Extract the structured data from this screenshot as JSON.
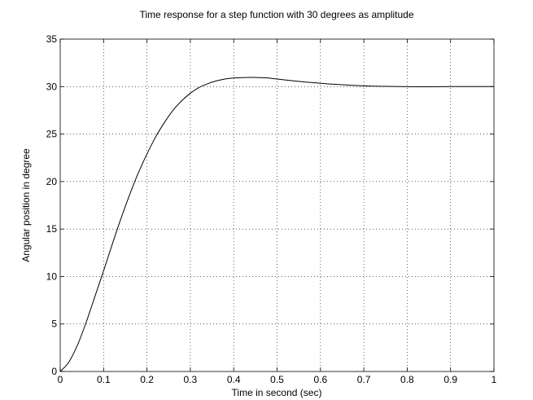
{
  "chart_data": {
    "type": "line",
    "title": "Time response for a step function with 30 degrees as amplitude",
    "xlabel": "Time in second (sec)",
    "ylabel": "Angular position in degree",
    "xlim": [
      0,
      1
    ],
    "ylim": [
      0,
      35
    ],
    "xticks": [
      0,
      0.1,
      0.2,
      0.3,
      0.4,
      0.5,
      0.6,
      0.7,
      0.8,
      0.9,
      1
    ],
    "yticks": [
      0,
      5,
      10,
      15,
      20,
      25,
      30,
      35
    ],
    "grid": true,
    "grid_style": "dotted",
    "series": [
      {
        "color": "#000000",
        "x": [
          0,
          0.02,
          0.04,
          0.06,
          0.08,
          0.1,
          0.12,
          0.14,
          0.16,
          0.18,
          0.2,
          0.22,
          0.24,
          0.26,
          0.28,
          0.3,
          0.32,
          0.34,
          0.36,
          0.38,
          0.4,
          0.42,
          0.44,
          0.46,
          0.48,
          0.5,
          0.55,
          0.6,
          0.65,
          0.7,
          0.75,
          0.8,
          0.85,
          0.9,
          0.95,
          1.0
        ],
        "y": [
          0,
          1.0,
          2.8,
          5.2,
          7.9,
          10.6,
          13.4,
          16.1,
          18.6,
          20.9,
          22.9,
          24.7,
          26.2,
          27.5,
          28.5,
          29.3,
          29.9,
          30.3,
          30.6,
          30.8,
          30.9,
          30.95,
          30.97,
          30.95,
          30.9,
          30.8,
          30.55,
          30.35,
          30.2,
          30.08,
          30.02,
          29.99,
          29.98,
          30.0,
          30.0,
          30.0
        ]
      }
    ]
  }
}
